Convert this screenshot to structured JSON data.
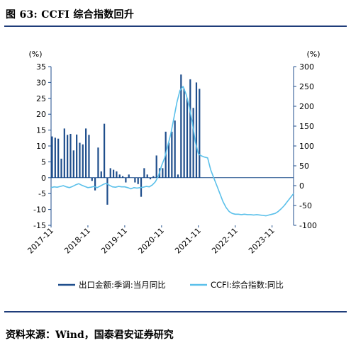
{
  "header": {
    "title": "图 63: CCFI 综合指数回升"
  },
  "footer": {
    "source": "资料来源：Wind，国泰君安证券研究"
  },
  "chart_data": {
    "type": "bar",
    "left_axis": {
      "unit": "(%)",
      "ylim": [
        -15,
        35
      ],
      "ticks": [
        -15,
        -10,
        -5,
        0,
        5,
        10,
        15,
        20,
        25,
        30,
        35
      ]
    },
    "right_axis": {
      "unit": "(%)",
      "ylim": [
        -100,
        300
      ],
      "ticks": [
        -100,
        -50,
        0,
        50,
        100,
        150,
        200,
        250,
        300
      ]
    },
    "x_ticks": [
      "2017-11",
      "2018-11",
      "2019-11",
      "2020-11",
      "2021-11",
      "2022-11",
      "2023-11"
    ],
    "x_range": [
      0,
      79
    ],
    "grid": false,
    "legend_position": "bottom",
    "series": [
      {
        "name": "出口金额:季调:当月同比",
        "type": "bar",
        "axis": "left",
        "color": "#1f4e8c",
        "x": [
          0,
          1,
          2,
          3,
          4,
          5,
          6,
          7,
          8,
          9,
          10,
          11,
          12,
          13,
          14,
          15,
          16,
          17,
          18,
          19,
          20,
          21,
          22,
          23,
          24,
          25,
          26,
          27,
          28,
          29,
          30,
          31,
          32,
          33,
          34,
          35,
          36,
          37,
          38,
          39,
          40,
          41,
          42,
          43,
          44,
          45,
          46,
          47,
          48
        ],
        "values": [
          13,
          12.6,
          12.3,
          6,
          15.5,
          13.5,
          13.8,
          8.6,
          13.6,
          11,
          10.5,
          15.5,
          13.5,
          -1,
          -4,
          9.5,
          2,
          17,
          -8.5,
          3,
          2.5,
          2,
          1,
          0.5,
          -1.5,
          1,
          0,
          -1.5,
          -2,
          -6,
          3,
          1,
          -0.5,
          0.5,
          7,
          3,
          3,
          14.5,
          11,
          14.5,
          18,
          1,
          32.5,
          28,
          25,
          31,
          22,
          30,
          28
        ]
      },
      {
        "name": "CCFI:综合指数:同比",
        "type": "line",
        "axis": "right",
        "color": "#5bc0ea",
        "x": [
          0,
          1,
          2,
          3,
          4,
          5,
          6,
          7,
          8,
          9,
          10,
          11,
          12,
          13,
          14,
          15,
          16,
          17,
          18,
          19,
          20,
          21,
          22,
          23,
          24,
          25,
          26,
          27,
          28,
          29,
          30,
          31,
          32,
          33,
          34,
          35,
          36,
          37,
          38,
          39,
          40,
          41,
          42,
          43,
          44,
          45,
          46,
          47,
          48,
          49,
          50,
          51,
          52,
          53,
          54,
          55,
          56,
          57,
          58,
          59,
          60,
          61,
          62,
          63,
          64,
          65,
          66,
          67,
          68,
          69,
          70,
          71,
          72,
          73,
          74,
          75,
          76,
          77,
          78,
          79
        ],
        "values": [
          -5,
          -3,
          -4,
          -2,
          0,
          -3,
          -5,
          -2,
          2,
          5,
          1,
          -2,
          -5,
          -4,
          -2,
          -5,
          -1,
          3,
          6,
          1,
          -3,
          -4,
          -2,
          -3,
          -3,
          -5,
          -8,
          -5,
          -6,
          -5,
          -4,
          -2,
          -3,
          2,
          10,
          25,
          50,
          70,
          100,
          130,
          170,
          210,
          240,
          250,
          230,
          200,
          160,
          110,
          80,
          75,
          72,
          70,
          40,
          20,
          0,
          -20,
          -40,
          -55,
          -65,
          -70,
          -72,
          -72,
          -73,
          -72,
          -73,
          -73,
          -74,
          -73,
          -74,
          -75,
          -76,
          -74,
          -72,
          -70,
          -65,
          -58,
          -50,
          -40,
          -30,
          -20
        ]
      }
    ]
  }
}
